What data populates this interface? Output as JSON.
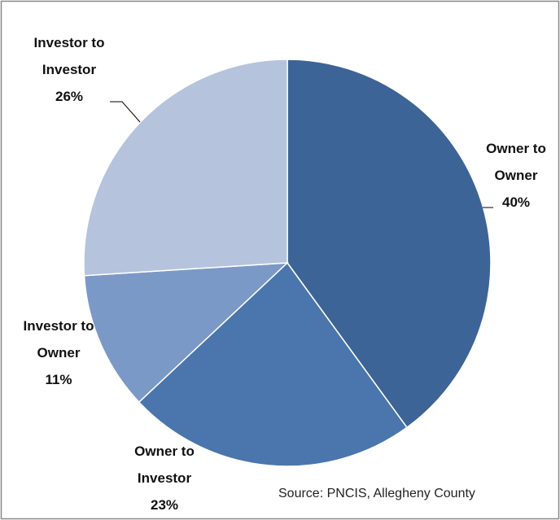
{
  "chart_data": {
    "type": "pie",
    "categories": [
      "Owner to Owner",
      "Owner to Investor",
      "Investor to Owner",
      "Investor to Investor"
    ],
    "values": [
      40,
      23,
      11,
      26
    ],
    "value_labels": [
      "40%",
      "23%",
      "11%",
      "26%"
    ],
    "colors": [
      "#3d6496",
      "#4a76ad",
      "#7b99c6",
      "#b5c3dd"
    ],
    "annotations": [
      "Source: PNCIS, Allegheny County"
    ]
  }
}
